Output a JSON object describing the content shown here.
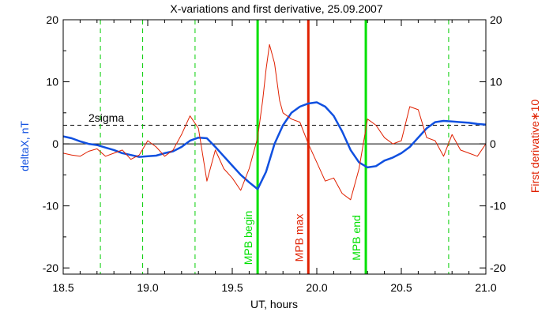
{
  "chart_data": {
    "type": "line",
    "title": "X-variations and first derivative, 25.09.2007",
    "xlabel": "UT, hours",
    "ylabel_left": "deltaX, nT",
    "ylabel_right": "First derivative∗10",
    "xlim": [
      18.5,
      21.0
    ],
    "ylim": [
      -21,
      20
    ],
    "xticks": [
      "18.5",
      "19.0",
      "19.5",
      "20.0",
      "20.5",
      "21.0"
    ],
    "yticks": [
      "20",
      "10",
      "0",
      "-10",
      "-20"
    ],
    "yticks_right": [
      "20",
      "10",
      "0",
      "-10",
      "-20"
    ],
    "threshold_line": {
      "label": "2sigma",
      "y": 3.0
    },
    "zero_line": 0,
    "event_lines": [
      {
        "x": 19.65,
        "label": "MPB begin",
        "color": "#00e000"
      },
      {
        "x": 19.95,
        "label": "MPB max",
        "color": "#e02000"
      },
      {
        "x": 20.29,
        "label": "MPB end",
        "color": "#00e000"
      }
    ],
    "dashed_markers": {
      "color": "#00cc00",
      "x": [
        18.72,
        18.97,
        19.28,
        20.78,
        21.0
      ]
    },
    "series": [
      {
        "axis": "left",
        "color": "#1050e0",
        "x": [
          18.5,
          18.55,
          18.6,
          18.65,
          18.7,
          18.75,
          18.8,
          18.85,
          18.9,
          18.95,
          19.0,
          19.05,
          19.1,
          19.15,
          19.2,
          19.25,
          19.3,
          19.35,
          19.4,
          19.45,
          19.5,
          19.55,
          19.6,
          19.65,
          19.7,
          19.75,
          19.8,
          19.85,
          19.9,
          19.95,
          20.0,
          20.05,
          20.1,
          20.15,
          20.2,
          20.25,
          20.3,
          20.35,
          20.4,
          20.45,
          20.5,
          20.55,
          20.6,
          20.65,
          20.7,
          20.75,
          20.8,
          20.85,
          20.9,
          20.95,
          21.0
        ],
        "y": [
          1.2,
          0.9,
          0.4,
          0.0,
          -0.2,
          -0.6,
          -1.0,
          -1.5,
          -1.8,
          -2.1,
          -2.0,
          -1.9,
          -1.5,
          -1.2,
          -0.5,
          0.5,
          1.0,
          0.9,
          -0.5,
          -2.0,
          -3.5,
          -5.0,
          -6.2,
          -7.3,
          -4.5,
          0.0,
          3.0,
          5.0,
          6.0,
          6.5,
          6.7,
          6.0,
          4.5,
          2.0,
          -1.0,
          -3.0,
          -3.8,
          -3.6,
          -2.7,
          -2.2,
          -1.5,
          -0.5,
          1.0,
          2.5,
          3.5,
          3.7,
          3.6,
          3.5,
          3.4,
          3.2,
          3.1
        ]
      },
      {
        "axis": "right",
        "color": "#e02000",
        "x": [
          18.5,
          18.55,
          18.6,
          18.65,
          18.7,
          18.75,
          18.8,
          18.85,
          18.9,
          18.95,
          19.0,
          19.05,
          19.1,
          19.15,
          19.2,
          19.25,
          19.3,
          19.35,
          19.4,
          19.45,
          19.5,
          19.55,
          19.6,
          19.62,
          19.65,
          19.68,
          19.7,
          19.72,
          19.75,
          19.78,
          19.8,
          19.85,
          19.9,
          19.95,
          20.0,
          20.05,
          20.1,
          20.15,
          20.2,
          20.25,
          20.3,
          20.35,
          20.4,
          20.45,
          20.5,
          20.55,
          20.6,
          20.65,
          20.7,
          20.75,
          20.8,
          20.85,
          20.9,
          20.95,
          21.0
        ],
        "y": [
          -1.5,
          -1.8,
          -2.0,
          -1.2,
          -0.8,
          -2.0,
          -1.5,
          -1.0,
          -2.5,
          -1.8,
          0.5,
          -0.5,
          -2.0,
          -1.0,
          1.5,
          4.5,
          2.5,
          -6.0,
          -1.0,
          -4.0,
          -5.5,
          -7.5,
          -4.0,
          -2.0,
          1.0,
          7.0,
          12.0,
          16.0,
          13.0,
          7.0,
          5.0,
          4.0,
          3.5,
          0.0,
          -3.0,
          -6.0,
          -5.5,
          -8.0,
          -9.0,
          -4.0,
          4.0,
          3.0,
          1.0,
          0.0,
          0.5,
          6.0,
          5.5,
          1.0,
          0.5,
          -2.0,
          1.5,
          -1.0,
          -1.5,
          -2.0,
          0.0
        ]
      }
    ]
  }
}
